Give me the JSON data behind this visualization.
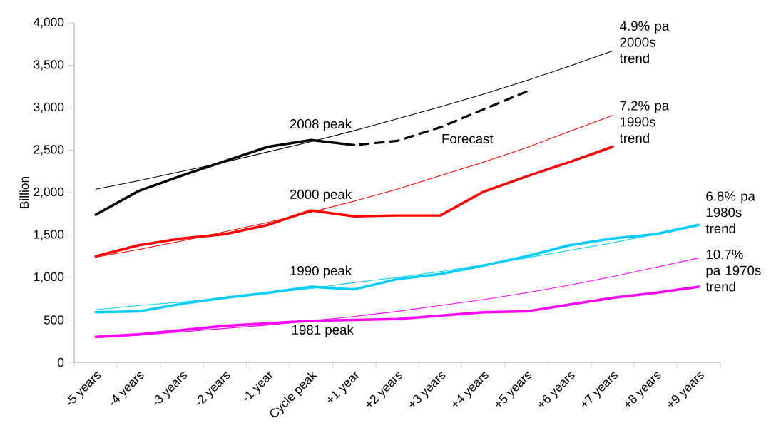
{
  "chart_data": {
    "type": "line",
    "ylabel": "Billion",
    "categories": [
      "-5 years",
      "-4 years",
      "-3 years",
      "-2 years",
      "-1 year",
      "Cycle peak",
      "+1 year",
      "+2 years",
      "+3 years",
      "+4 years",
      "+5 years",
      "+6 years",
      "+7 years",
      "+8 years",
      "+9 years"
    ],
    "series": [
      {
        "color": "#000000",
        "values": [
          2040,
          2140,
          2250,
          2360,
          2480,
          2600,
          2730,
          2870,
          3010,
          3160,
          3320,
          3490,
          3670,
          null,
          null
        ]
      },
      {
        "color": "#ff0000",
        "values": [
          1240,
          1330,
          1430,
          1540,
          1650,
          1770,
          1900,
          2040,
          2200,
          2360,
          2530,
          2720,
          2910,
          null,
          null
        ]
      },
      {
        "color": "#00ccff",
        "values": [
          620,
          670,
          710,
          760,
          820,
          870,
          940,
          1000,
          1070,
          1150,
          1230,
          1320,
          1410,
          1510,
          1620
        ]
      },
      {
        "color": "#ff00ff",
        "values": [
          290,
          320,
          360,
          400,
          440,
          490,
          540,
          600,
          670,
          740,
          820,
          910,
          1010,
          1120,
          1230
        ]
      },
      {
        "color": "#000000",
        "values": [
          1740,
          2020,
          2200,
          2370,
          2540,
          2620,
          2560,
          null,
          null,
          null,
          null,
          null,
          null,
          null,
          null
        ]
      },
      {
        "color": "#000000",
        "line_style": "dashed",
        "values": [
          null,
          null,
          null,
          null,
          null,
          null,
          2560,
          2610,
          2770,
          2980,
          3190,
          null,
          null,
          null,
          null
        ]
      },
      {
        "color": "#ff0000",
        "values": [
          1250,
          1380,
          1460,
          1510,
          1620,
          1790,
          1720,
          1730,
          1730,
          2010,
          2190,
          2360,
          2540,
          null,
          null
        ]
      },
      {
        "color": "#00ccff",
        "values": [
          590,
          600,
          690,
          760,
          820,
          890,
          860,
          980,
          1040,
          1140,
          1250,
          1380,
          1460,
          1510,
          1620
        ]
      },
      {
        "color": "#ff00ff",
        "values": [
          300,
          330,
          380,
          430,
          460,
          490,
          500,
          510,
          550,
          590,
          600,
          680,
          760,
          820,
          890
        ]
      }
    ],
    "ylim": [
      0,
      4000
    ],
    "yticks": [
      0,
      500,
      {
        "value": 1000,
        "label": "1,000"
      },
      {
        "value": 1500,
        "label": "1,500"
      },
      {
        "value": 2000,
        "label": "2,000"
      },
      {
        "value": 2500,
        "label": "2,500"
      },
      {
        "value": 3000,
        "label": "3,000"
      },
      {
        "value": 3500,
        "label": "3,500"
      },
      {
        "value": 4000,
        "label": "4,000"
      }
    ],
    "annotations": [
      {
        "text": "2008 peak",
        "x": "Cycle peak",
        "y": 2620
      },
      {
        "text": "2000 peak",
        "x": "Cycle peak",
        "y": 1790
      },
      {
        "text": "1990 peak",
        "x": "Cycle peak",
        "y": 890
      },
      {
        "text": "1981 peak",
        "x": "Cycle peak",
        "y": 490
      },
      {
        "text": "Forecast",
        "x": "+3 years",
        "y": 2770
      },
      {
        "text": "4.9% pa 2000s trend",
        "x": "+7 years",
        "y": 3670
      },
      {
        "text": "7.2% pa 1990s trend",
        "x": "+7 years",
        "y": 2910
      },
      {
        "text": "6.8% pa 1980s trend",
        "x": "+9 years",
        "y": 1620
      },
      {
        "text": "10.7% pa 1970s trend",
        "x": "+9 years",
        "y": 1230
      }
    ],
    "grid": false
  }
}
